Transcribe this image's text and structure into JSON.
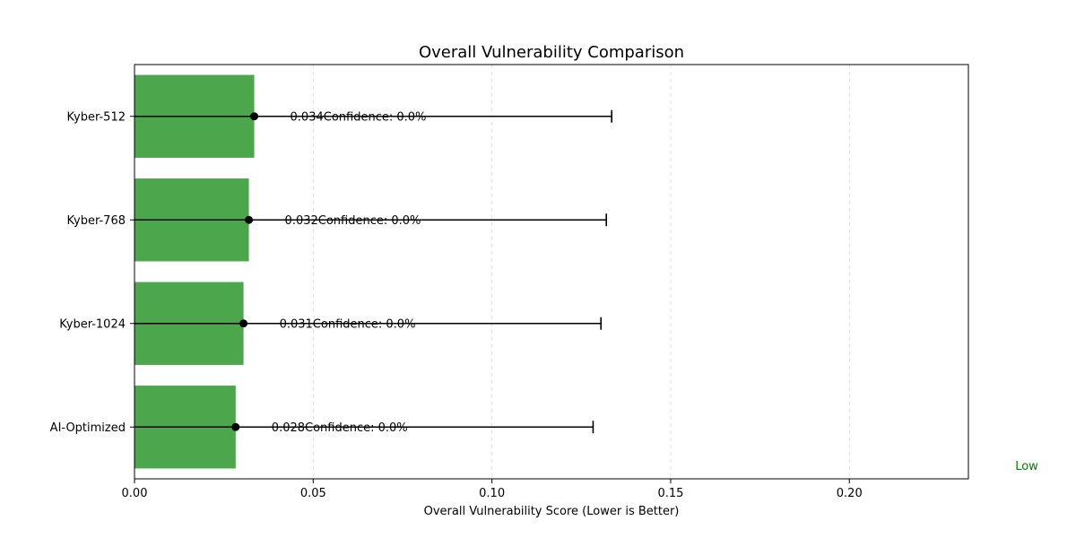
{
  "chart_data": {
    "type": "bar",
    "orientation": "horizontal",
    "title": "Overall Vulnerability Comparison",
    "xlabel": "Overall Vulnerability Score (Lower is Better)",
    "ylabel": "",
    "xlim": [
      0,
      0.2333
    ],
    "xticks": [
      0.0,
      0.05,
      0.1,
      0.15,
      0.2
    ],
    "xtick_labels": [
      "0.00",
      "0.05",
      "0.10",
      "0.15",
      "0.20"
    ],
    "grid": "x-dashed",
    "categories": [
      "Kyber-512",
      "Kyber-768",
      "Kyber-1024",
      "AI-Optimized"
    ],
    "values": [
      0.0335,
      0.032,
      0.0305,
      0.0283
    ],
    "error_upper": [
      0.1335,
      0.132,
      0.1305,
      0.1283
    ],
    "bar_color": "#4ca64c",
    "value_labels": [
      "0.034",
      "0.032",
      "0.031",
      "0.028"
    ],
    "confidence_labels": [
      "Confidence: 0.0%",
      "Confidence: 0.0%",
      "Confidence: 0.0%",
      "Confidence: 0.0%"
    ],
    "annotation": {
      "text": "Low",
      "color": "#008000"
    }
  }
}
